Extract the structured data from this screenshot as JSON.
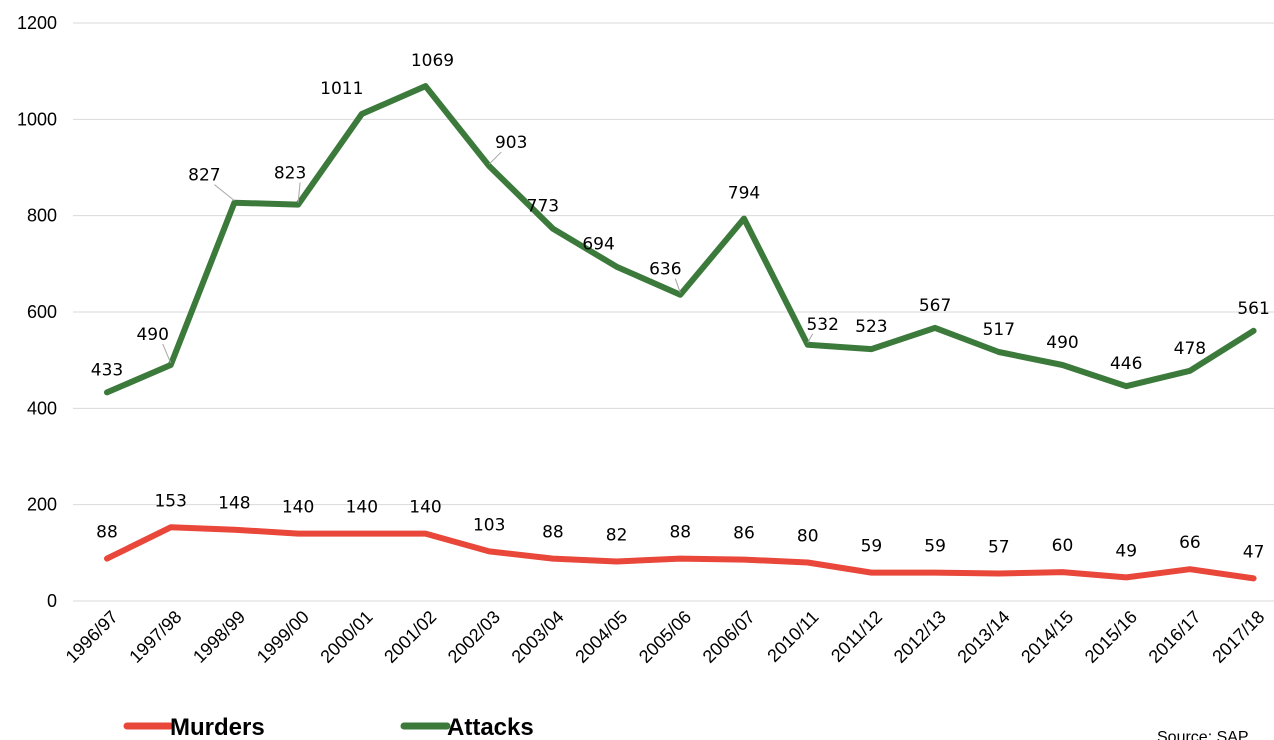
{
  "chart_data": {
    "type": "line",
    "categories": [
      "1996/97",
      "1997/98",
      "1998/99",
      "1999/00",
      "2000/01",
      "2001/02",
      "2002/03",
      "2003/04",
      "2004/05",
      "2005/06",
      "2006/07",
      "2010/11",
      "2011/12",
      "2012/13",
      "2013/14",
      "2014/15",
      "2015/16",
      "2016/17",
      "2017/18"
    ],
    "series": [
      {
        "name": "Murders",
        "color": "#e8473a",
        "values": [
          88,
          153,
          148,
          140,
          140,
          140,
          103,
          88,
          82,
          88,
          86,
          80,
          59,
          59,
          57,
          60,
          49,
          66,
          47
        ]
      },
      {
        "name": "Attacks",
        "color": "#3b7a3b",
        "values": [
          433,
          490,
          827,
          823,
          1011,
          1069,
          903,
          773,
          694,
          636,
          794,
          532,
          523,
          567,
          517,
          490,
          446,
          478,
          561
        ]
      }
    ],
    "ylim": [
      0,
      1200
    ],
    "yticks": [
      0,
      200,
      400,
      600,
      800,
      1000,
      1200
    ],
    "grid": true,
    "legend_position": "bottom-left",
    "data_labels": true
  },
  "source_note": "Source: SAP"
}
